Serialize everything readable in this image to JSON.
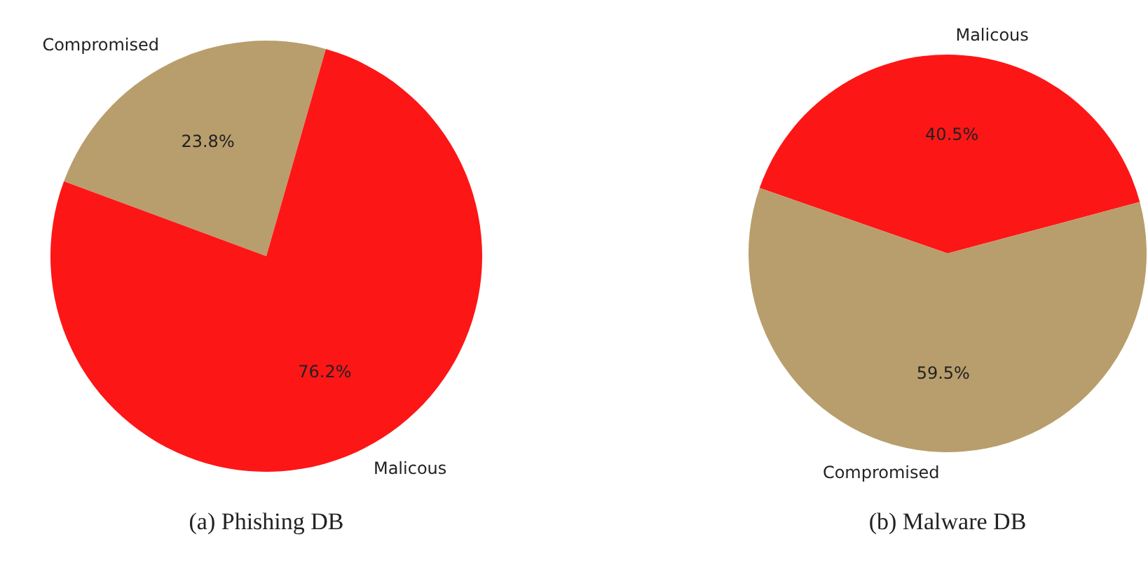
{
  "chart_data": [
    {
      "type": "pie",
      "title": "(a) Phishing DB",
      "categories": [
        "Compromised",
        "Malicous"
      ],
      "values": [
        23.8,
        76.2
      ],
      "colors": [
        "#b89e6c",
        "#fd1616"
      ],
      "value_labels": [
        "23.8%",
        "76.2%"
      ]
    },
    {
      "type": "pie",
      "title": "(b) Malware DB",
      "categories": [
        "Malicous",
        "Compromised"
      ],
      "values": [
        40.5,
        59.5
      ],
      "colors": [
        "#fd1616",
        "#b89e6c"
      ],
      "value_labels": [
        "40.5%",
        "59.5%"
      ]
    }
  ]
}
